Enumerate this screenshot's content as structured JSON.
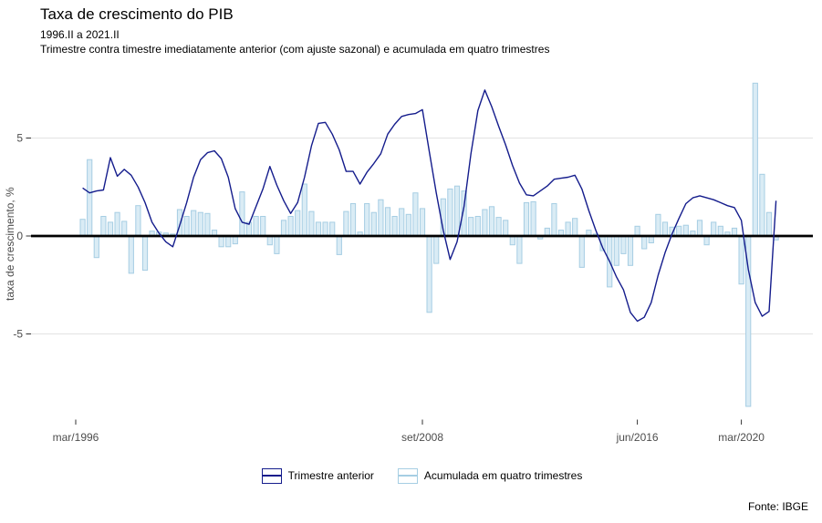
{
  "header": {
    "title": "Taxa de crescimento do PIB",
    "subtitle_period": "1996.II a 2021.II",
    "subtitle_description": "Trimestre contra timestre imediatamente anterior (com ajuste sazonal) e acumulada em quatro trimestres"
  },
  "footer": {
    "source": "Fonte: IBGE"
  },
  "chart_data": {
    "type": "line+bar",
    "frequency": "quarterly",
    "start_quarter": "1996.II",
    "end_quarter": "2021.II",
    "ylabel": "taxa de crescimento, %",
    "y_ticks": [
      5,
      0,
      -5
    ],
    "ylim": [
      -9.4,
      8.6
    ],
    "zero_line": true,
    "grid": "horizontal gridlines at +5 and -5 only",
    "legend_position": "bottom center",
    "x_ticks": [
      {
        "label": "mar/1996",
        "index": -1
      },
      {
        "label": "set/2008",
        "index": 49
      },
      {
        "label": "jun/2016",
        "index": 80
      },
      {
        "label": "mar/2020",
        "index": 95
      }
    ],
    "series": [
      {
        "name": "Trimestre anterior",
        "type": "line",
        "color": "#141c8c",
        "values": [
          2.45,
          2.2,
          2.3,
          2.35,
          4.0,
          3.05,
          3.4,
          3.1,
          2.5,
          1.7,
          0.7,
          0.15,
          -0.3,
          -0.55,
          0.55,
          1.7,
          3.0,
          3.9,
          4.25,
          4.35,
          3.95,
          3.0,
          1.4,
          0.7,
          0.6,
          1.5,
          2.4,
          3.55,
          2.6,
          1.8,
          1.15,
          1.7,
          3.0,
          4.6,
          5.75,
          5.8,
          5.2,
          4.4,
          3.3,
          3.3,
          2.65,
          3.25,
          3.7,
          4.2,
          5.2,
          5.7,
          6.1,
          6.2,
          6.25,
          6.45,
          4.3,
          2.2,
          0.3,
          -1.2,
          -0.3,
          1.5,
          4.2,
          6.4,
          7.45,
          6.6,
          5.6,
          4.65,
          3.6,
          2.7,
          2.1,
          2.05,
          2.3,
          2.55,
          2.9,
          2.95,
          3.0,
          3.1,
          2.4,
          1.3,
          0.3,
          -0.6,
          -1.3,
          -2.1,
          -2.75,
          -3.9,
          -4.35,
          -4.15,
          -3.4,
          -2.0,
          -0.85,
          0.1,
          0.9,
          1.65,
          1.95,
          2.05,
          1.95,
          1.85,
          1.7,
          1.55,
          1.45,
          0.8,
          -1.7,
          -3.4,
          -4.1,
          -3.85,
          1.8
        ]
      },
      {
        "name": "Acumulada em quatro trimestres",
        "type": "bar",
        "fill": "#daecf5",
        "stroke": "#a6cee3",
        "values": [
          0.85,
          3.9,
          -1.1,
          1.0,
          0.7,
          1.2,
          0.75,
          -1.9,
          1.55,
          -1.75,
          0.25,
          0.2,
          0.15,
          0.1,
          1.35,
          1.0,
          1.3,
          1.2,
          1.15,
          0.3,
          -0.55,
          -0.55,
          -0.4,
          2.25,
          0.7,
          1.0,
          1.0,
          -0.45,
          -0.9,
          0.8,
          1.0,
          1.3,
          2.65,
          1.25,
          0.7,
          0.7,
          0.7,
          -0.95,
          1.25,
          1.65,
          0.2,
          1.65,
          1.2,
          1.85,
          1.45,
          1.0,
          1.4,
          1.1,
          2.2,
          1.4,
          -3.9,
          -1.4,
          1.9,
          2.4,
          2.55,
          2.3,
          0.95,
          1.0,
          1.35,
          1.5,
          0.95,
          0.8,
          -0.45,
          -1.4,
          1.7,
          1.75,
          -0.15,
          0.4,
          1.65,
          0.3,
          0.7,
          0.9,
          -1.6,
          0.3,
          0.1,
          -0.75,
          -2.6,
          -1.5,
          -0.9,
          -1.5,
          0.5,
          -0.65,
          -0.35,
          1.1,
          0.7,
          0.45,
          0.5,
          0.55,
          0.25,
          0.8,
          -0.45,
          0.7,
          0.5,
          0.2,
          0.4,
          -2.45,
          -8.7,
          7.8,
          3.15,
          1.2,
          -0.2
        ]
      }
    ],
    "colors": {
      "zero_line": "#000000",
      "gridline": "#e3e3e3",
      "axis_text": "#4d4d4d"
    }
  }
}
